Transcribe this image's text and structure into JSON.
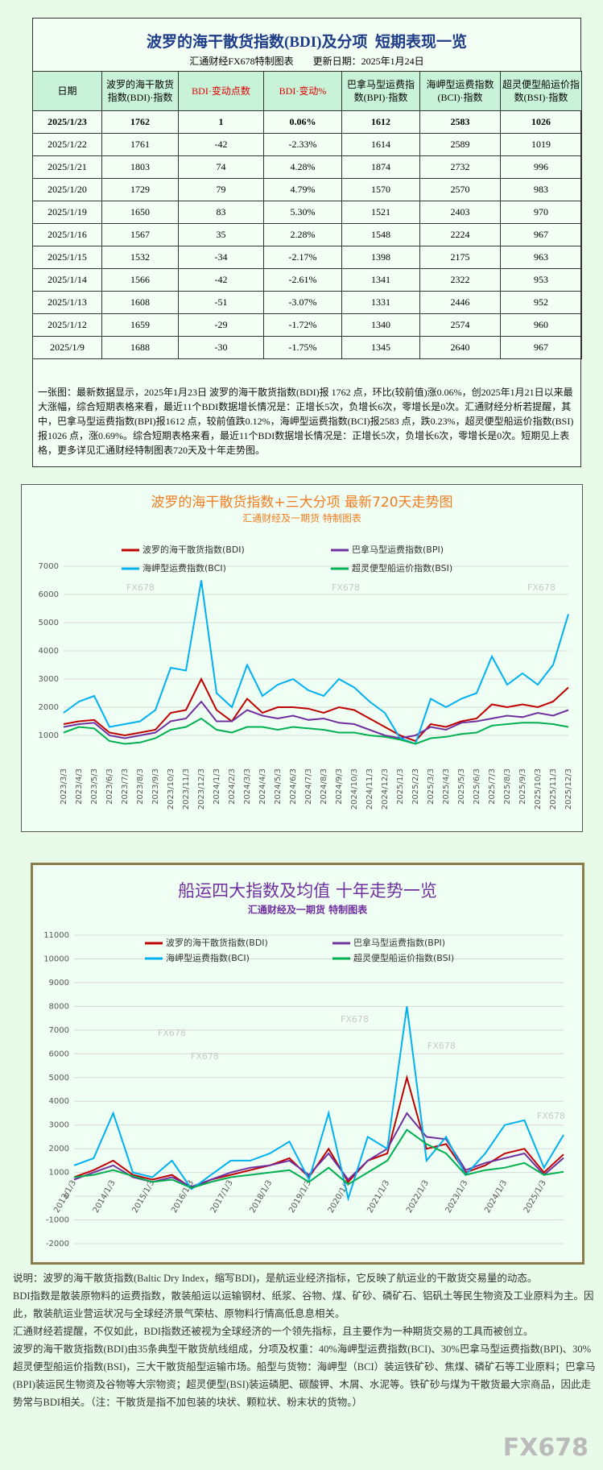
{
  "table": {
    "title": "波罗的海干散货指数(BDI)及分项  短期表现一览",
    "subtitle": "汇通财经FX678特制图表",
    "updated": "更新日期：2025年1月24日",
    "columns": [
      "日期",
      "波罗的海干散货指数(BDI)·指数",
      "BDI·变动点数",
      "BDI·变动%",
      "巴拿马型运费指数(BPI)·指数",
      "海岬型运费指数(BCI)·指数",
      "超灵便型船运价指数(BSI)·指数"
    ],
    "rows": [
      [
        "2025/1/23",
        "1762",
        "1",
        "0.06%",
        "1612",
        "2583",
        "1026"
      ],
      [
        "2025/1/22",
        "1761",
        "-42",
        "-2.33%",
        "1614",
        "2589",
        "1019"
      ],
      [
        "2025/1/21",
        "1803",
        "74",
        "4.28%",
        "1874",
        "2732",
        "996"
      ],
      [
        "2025/1/20",
        "1729",
        "79",
        "4.79%",
        "1570",
        "2570",
        "983"
      ],
      [
        "2025/1/19",
        "1650",
        "83",
        "5.30%",
        "1521",
        "2403",
        "970"
      ],
      [
        "2025/1/16",
        "1567",
        "35",
        "2.28%",
        "1548",
        "2224",
        "967"
      ],
      [
        "2025/1/15",
        "1532",
        "-34",
        "-2.17%",
        "1398",
        "2175",
        "963"
      ],
      [
        "2025/1/14",
        "1566",
        "-42",
        "-2.61%",
        "1341",
        "2322",
        "953"
      ],
      [
        "2025/1/13",
        "1608",
        "-51",
        "-3.07%",
        "1331",
        "2446",
        "952"
      ],
      [
        "2025/1/12",
        "1659",
        "-29",
        "-1.72%",
        "1340",
        "2574",
        "960"
      ],
      [
        "2025/1/9",
        "1688",
        "-30",
        "-1.75%",
        "1345",
        "2640",
        "967"
      ]
    ],
    "note": "一张图：最新数据显示，2025年1月23日 波罗的海干散货指数(BDI)报 1762 点，环比(较前值)涨0.06%，创2025年1月21日以来最大涨幅，综合短期表格来看，最近11个BDI数据增长情况是：正增长5次，负增长6次，零增长是0次。汇通财经分析若提醒，其中，巴拿马型运费指数(BPI)报1612 点，较前值跌0.12%，海岬型运费指数(BCI)报2583 点，跌0.23%，超灵便型船运价指数(BSI)报1026 点，涨0.69%。综合短期表格来看，最近11个BDI数据增长情况是：正增长5次，负增长6次，零增长是0次。短期见上表格，更多详见汇通财经特制图表720天及十年走势图。"
  },
  "chart_data": [
    {
      "type": "line",
      "title": "波罗的海干散货指数+三大分项  最新720天走势图",
      "subtitle": "汇通财经及一期货 特制图表",
      "categories": [
        "2023/3/3",
        "2023/4/3",
        "2023/5/3",
        "2023/6/3",
        "2023/7/3",
        "2023/8/3",
        "2023/9/3",
        "2023/10/3",
        "2023/11/3",
        "2023/12/3",
        "2024/1/3",
        "2024/2/3",
        "2024/3/3",
        "2024/4/3",
        "2024/5/3",
        "2024/6/3",
        "2024/7/3",
        "2024/8/3",
        "2024/9/3",
        "2024/10/3",
        "2024/11/3",
        "2024/12/3",
        "2025/1/3",
        "2025/2/3",
        "2025/3/3",
        "2025/4/3",
        "2025/5/3",
        "2025/6/3",
        "2025/7/3",
        "2025/8/3",
        "2025/9/3",
        "2025/10/3",
        "2025/11/3",
        "2025/12/3"
      ],
      "series": [
        {
          "name": "波罗的海干散货指数(BDI)",
          "color": "#c00000",
          "values": [
            1400,
            1500,
            1550,
            1100,
            1000,
            1100,
            1200,
            1800,
            1900,
            3000,
            1900,
            1500,
            2300,
            1800,
            2000,
            2000,
            1950,
            1800,
            2000,
            1900,
            1600,
            1300,
            1000,
            800,
            1400,
            1300,
            1500,
            1600,
            2100,
            2000,
            2100,
            2000,
            2200,
            2700
          ]
        },
        {
          "name": "巴拿马型运费指数(BPI)",
          "color": "#7030a0",
          "values": [
            1300,
            1400,
            1450,
            1000,
            900,
            1000,
            1100,
            1500,
            1600,
            2200,
            1500,
            1500,
            1900,
            1700,
            1600,
            1700,
            1550,
            1600,
            1450,
            1400,
            1200,
            1000,
            900,
            1000,
            1300,
            1200,
            1450,
            1500,
            1600,
            1700,
            1650,
            1800,
            1700,
            1900
          ]
        },
        {
          "name": "海岬型运费指数(BCI)",
          "color": "#00b0f0",
          "values": [
            1800,
            2200,
            2400,
            1300,
            1400,
            1500,
            1900,
            3400,
            3300,
            6500,
            2500,
            2000,
            3500,
            2400,
            2800,
            3000,
            2600,
            2400,
            3000,
            2700,
            2200,
            1800,
            900,
            700,
            2300,
            2000,
            2300,
            2500,
            3800,
            2800,
            3200,
            2800,
            3500,
            5300
          ]
        },
        {
          "name": "超灵便型船运价指数(BSI)",
          "color": "#00b050",
          "values": [
            1100,
            1300,
            1250,
            800,
            700,
            750,
            900,
            1200,
            1300,
            1600,
            1200,
            1100,
            1300,
            1300,
            1200,
            1300,
            1250,
            1200,
            1100,
            1100,
            1000,
            950,
            850,
            700,
            900,
            950,
            1050,
            1100,
            1350,
            1400,
            1450,
            1450,
            1400,
            1300
          ]
        }
      ],
      "ylim": [
        0,
        7000
      ],
      "yticks": [
        1000,
        2000,
        3000,
        4000,
        5000,
        6000,
        7000
      ],
      "grid": true
    },
    {
      "type": "line",
      "title": "船运四大指数及均值 十年走势一览",
      "subtitle": "汇通财经及一期货 特制图表",
      "categories": [
        "2013/1/3",
        null,
        "2014/1/3",
        null,
        "2015/1/3",
        null,
        "2016/1/3",
        null,
        "2017/1/3",
        null,
        "2018/1/3",
        null,
        "2019/1/3",
        null,
        "2020/1/3",
        null,
        "2021/1/3",
        null,
        "2022/1/3",
        null,
        "2023/1/3",
        null,
        "2024/1/3",
        null,
        "2025/1/3",
        null
      ],
      "series": [
        {
          "name": "波罗的海干散货指数(BDI)",
          "color": "#c00000",
          "values": [
            800,
            1100,
            1500,
            900,
            700,
            900,
            350,
            700,
            900,
            1100,
            1300,
            1600,
            800,
            2000,
            600,
            1500,
            1800,
            5000,
            2000,
            2200,
            1000,
            1300,
            1800,
            2000,
            1000,
            1762
          ]
        },
        {
          "name": "巴拿马型运费指数(BPI)",
          "color": "#7030a0",
          "values": [
            700,
            1000,
            1300,
            800,
            600,
            800,
            400,
            700,
            1000,
            1200,
            1300,
            1500,
            900,
            1800,
            700,
            1500,
            2000,
            3500,
            2500,
            2400,
            1100,
            1400,
            1600,
            1800,
            900,
            1612
          ]
        },
        {
          "name": "海岬型运费指数(BCI)",
          "color": "#00b0f0",
          "values": [
            1300,
            1600,
            3500,
            1000,
            800,
            1500,
            300,
            900,
            1500,
            1500,
            1800,
            2300,
            700,
            3500,
            -100,
            2500,
            2000,
            8000,
            1500,
            2500,
            900,
            1800,
            3000,
            3200,
            1200,
            2583
          ]
        },
        {
          "name": "超灵便型船运价指数(BSI)",
          "color": "#00b050",
          "values": [
            800,
            900,
            1100,
            850,
            600,
            700,
            350,
            600,
            800,
            900,
            1000,
            1100,
            600,
            1200,
            500,
            1000,
            1500,
            2800,
            2200,
            1800,
            900,
            1100,
            1200,
            1400,
            900,
            1026
          ]
        }
      ],
      "ylim": [
        -2000,
        11000
      ],
      "yticks": [
        -2000,
        -1000,
        0,
        1000,
        2000,
        3000,
        4000,
        5000,
        6000,
        7000,
        8000,
        9000,
        10000,
        11000
      ],
      "grid": true
    }
  ],
  "notes": [
    "说明：波罗的海干散货指数(Baltic Dry Index，缩写BDI)，是航运业经济指标，它反映了航运业的干散货交易量的动态。",
    "BDI指数是散装原物料的运费指数，散装船运以运输钢材、纸浆、谷物、煤、矿砂、磷矿石、铝矾土等民生物资及工业原料为主。因此，散装航运业营运状况与全球经济景气荣枯、原物料行情高低息息相关。",
    "汇通财经若提醒，不仅如此，BDI指数还被视为全球经济的一个领先指标，且主要作为一种期货交易的工具而被创立。",
    "波罗的海干散货指数(BDI)由35条典型干散货航线组成，分项及权重：40%海岬型运费指数(BCI)、30%巴拿马型运费指数(BPI)、30%超灵便型船运价指数(BSI)，三大干散货船型运输市场。船型与货物：海岬型（BCI）装运铁矿砂、焦煤、磷矿石等工业原料；巴拿马(BPI)装运民生物资及谷物等大宗物资；超灵便型(BSI)装运磷肥、碳酸钾、木屑、水泥等。铁矿砂与煤为干散货最大宗商品，因此走势常与BDI相关。（注：干散货是指不加包装的块状、颗粒状、粉末状的货物。）"
  ],
  "watermark": "FX678"
}
